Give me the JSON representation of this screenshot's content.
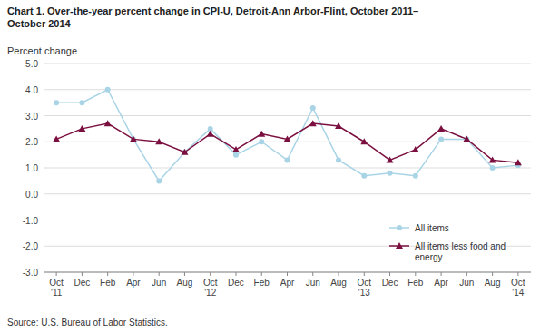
{
  "chart_data": {
    "type": "line",
    "title": "Chart 1. Over-the-year percent change in CPI-U, Detroit-Ann Arbor-Flint,  October 2011–\nOctober 2014",
    "ylabel": "Percent change",
    "source": "Source: U.S. Bureau of Labor Statistics.",
    "categories": [
      "Oct\n'11",
      "Dec",
      "Feb",
      "Apr",
      "Jun",
      "Aug",
      "Oct\n'12",
      "Dec",
      "Feb",
      "Apr",
      "Jun",
      "Aug",
      "Oct\n'13",
      "Dec",
      "Feb",
      "Apr",
      "Jun",
      "Aug",
      "Oct\n'14"
    ],
    "series": [
      {
        "name": "All items",
        "color": "#a8d4e6",
        "marker": "circle",
        "line_style": "solid",
        "values": [
          3.5,
          3.5,
          4.0,
          2.1,
          0.5,
          1.6,
          2.5,
          1.5,
          2.0,
          1.3,
          3.3,
          1.3,
          0.7,
          0.8,
          0.7,
          2.1,
          2.1,
          1.0,
          1.1
        ]
      },
      {
        "name": "All items less food and\nenergy",
        "color": "#7b1040",
        "marker": "triangle",
        "line_style": "solid",
        "values": [
          2.1,
          2.5,
          2.7,
          2.1,
          2.0,
          1.6,
          2.3,
          1.7,
          2.3,
          2.1,
          2.7,
          2.6,
          2.0,
          1.3,
          1.7,
          2.5,
          2.1,
          1.3,
          1.2
        ]
      }
    ],
    "ylim": [
      -3.0,
      5.0
    ],
    "yticks": [
      {
        "value": -3.0,
        "label": "-3.0"
      },
      {
        "value": -2.0,
        "label": "-2.0"
      },
      {
        "value": -1.0,
        "label": "-1.0"
      },
      {
        "value": 0.0,
        "label": "0.0"
      },
      {
        "value": 1.0,
        "label": "1.0"
      },
      {
        "value": 2.0,
        "label": "2.0"
      },
      {
        "value": 3.0,
        "label": "3.0"
      },
      {
        "value": 4.0,
        "label": "4.0"
      },
      {
        "value": 5.0,
        "label": "5.0"
      }
    ],
    "grid": true,
    "legend": "lower right"
  }
}
